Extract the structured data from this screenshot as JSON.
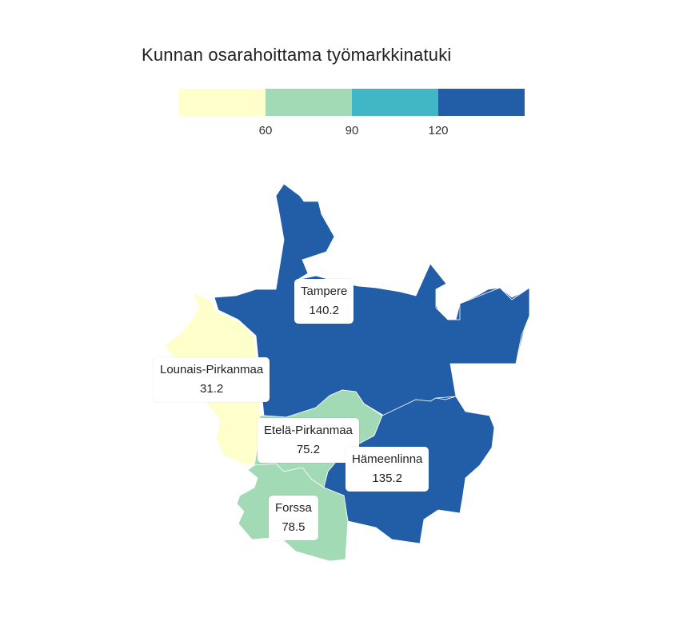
{
  "title": "Kunnan osarahoittama työmarkkinatuki",
  "legend": {
    "colors": [
      "#ffffcc",
      "#a1dab4",
      "#41b6c4",
      "#225ea8"
    ],
    "ticks": [
      "60",
      "90",
      "120"
    ]
  },
  "regions": [
    {
      "name": "Tampere",
      "value": "140.2",
      "color": "#225ea8"
    },
    {
      "name": "Lounais-Pirkanmaa",
      "value": "31.2",
      "color": "#ffffcc"
    },
    {
      "name": "Etelä-Pirkanmaa",
      "value": "75.2",
      "color": "#a1dab4"
    },
    {
      "name": "Hämeenlinna",
      "value": "135.2",
      "color": "#225ea8"
    },
    {
      "name": "Forssa",
      "value": "78.5",
      "color": "#a1dab4"
    }
  ]
}
